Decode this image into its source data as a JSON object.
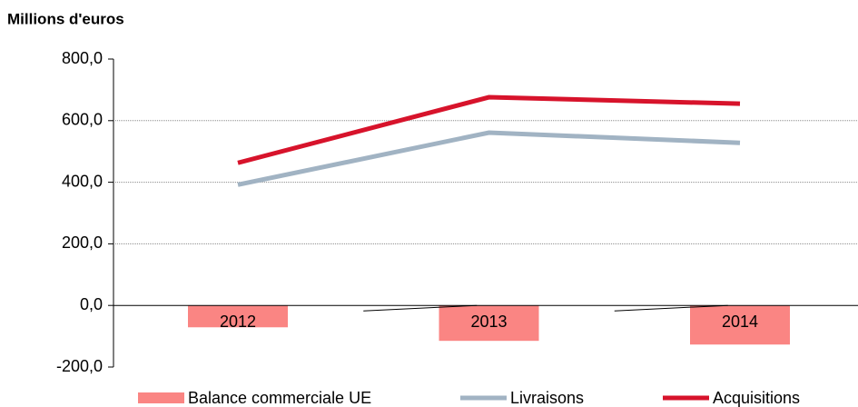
{
  "chart_data": {
    "type": "bar-line",
    "title": "Millions d'euros",
    "categories": [
      "2012",
      "2013",
      "2014"
    ],
    "series": [
      {
        "name": "Balance commerciale UE",
        "type": "bar",
        "color": "#fa8583",
        "values": [
          -71,
          -115,
          -127
        ]
      },
      {
        "name": "Livraisons",
        "type": "line",
        "color": "#a1b3c3",
        "values": [
          392,
          561,
          528
        ]
      },
      {
        "name": "Acquisitions",
        "type": "line",
        "color": "#d7132b",
        "values": [
          463,
          676,
          655
        ]
      }
    ],
    "ylim": [
      -200,
      800
    ],
    "yticks": [
      {
        "value": -200,
        "label": "-200,0"
      },
      {
        "value": 0,
        "label": "0,0"
      },
      {
        "value": 200,
        "label": "200,0"
      },
      {
        "value": 400,
        "label": "400,0"
      },
      {
        "value": 600,
        "label": "600,0"
      },
      {
        "value": 800,
        "label": "800,0"
      }
    ],
    "grid": true,
    "legend": "bottom"
  }
}
